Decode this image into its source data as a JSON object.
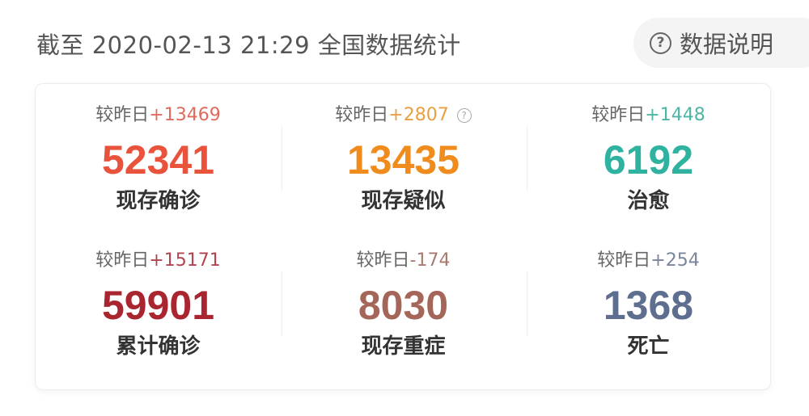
{
  "header": {
    "title": "截至 2020-02-13 21:29 全国数据统计",
    "info_button": "数据说明",
    "info_icon": "question-circle-icon"
  },
  "delta_prefix": "较昨日",
  "stats": [
    {
      "label": "现存确诊",
      "value": "52341",
      "delta": "+13469",
      "color": "#e9523b",
      "delta_color": "#e06a5c"
    },
    {
      "label": "现存疑似",
      "value": "13435",
      "delta": "+2807",
      "color": "#f08c1e",
      "delta_color": "#e8a044",
      "has_help": true
    },
    {
      "label": "治愈",
      "value": "6192",
      "delta": "+1448",
      "color": "#2fb29f",
      "delta_color": "#4db5a5"
    },
    {
      "label": "累计确诊",
      "value": "59901",
      "delta": "+15171",
      "color": "#a92631",
      "delta_color": "#b04450"
    },
    {
      "label": "现存重症",
      "value": "8030",
      "delta": "-174",
      "color": "#a5665a",
      "delta_color": "#a87a70"
    },
    {
      "label": "死亡",
      "value": "1368",
      "delta": "+254",
      "color": "#5d6e8f",
      "delta_color": "#7a859c"
    }
  ]
}
